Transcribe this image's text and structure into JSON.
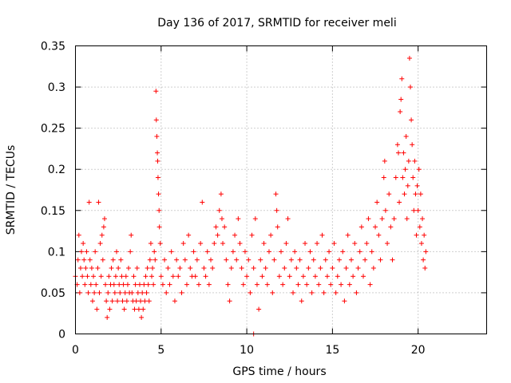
{
  "chart_data": {
    "type": "scatter",
    "title": "Day 136 of 2017, SRMTID for receiver meli",
    "xlabel": "GPS time / hours",
    "ylabel": "SRMTID / TECUs",
    "xlim": [
      0,
      24
    ],
    "ylim": [
      0,
      0.35
    ],
    "x_ticks": [
      0,
      5,
      10,
      15,
      20
    ],
    "y_ticks": [
      0,
      0.05,
      0.1,
      0.15,
      0.2,
      0.25,
      0.3,
      0.35
    ],
    "x_tick_labels": [
      "0",
      "5",
      "10",
      "15",
      "20"
    ],
    "y_tick_labels": [
      "0",
      "0.05",
      "0.1",
      "0.15",
      "0.2",
      "0.25",
      "0.3",
      "0.35"
    ],
    "grid": true,
    "marker": "+",
    "color": "#ff0000",
    "series": [
      {
        "values_xy": [
          [
            0.0,
            0.07
          ],
          [
            0.1,
            0.06
          ],
          [
            0.15,
            0.09
          ],
          [
            0.2,
            0.12
          ],
          [
            0.25,
            0.05
          ],
          [
            0.3,
            0.08
          ],
          [
            0.35,
            0.1
          ],
          [
            0.4,
            0.07
          ],
          [
            0.45,
            0.11
          ],
          [
            0.5,
            0.09
          ],
          [
            0.55,
            0.06
          ],
          [
            0.6,
            0.08
          ],
          [
            0.65,
            0.1
          ],
          [
            0.7,
            0.07
          ],
          [
            0.75,
            0.05
          ],
          [
            0.8,
            0.16
          ],
          [
            0.85,
            0.09
          ],
          [
            0.9,
            0.06
          ],
          [
            0.95,
            0.08
          ],
          [
            1.0,
            0.04
          ],
          [
            1.05,
            0.07
          ],
          [
            1.1,
            0.05
          ],
          [
            1.15,
            0.1
          ],
          [
            1.2,
            0.06
          ],
          [
            1.25,
            0.03
          ],
          [
            1.3,
            0.08
          ],
          [
            1.35,
            0.16
          ],
          [
            1.4,
            0.05
          ],
          [
            1.45,
            0.11
          ],
          [
            1.5,
            0.07
          ],
          [
            1.55,
            0.12
          ],
          [
            1.6,
            0.09
          ],
          [
            1.65,
            0.13
          ],
          [
            1.7,
            0.14
          ],
          [
            1.75,
            0.06
          ],
          [
            1.8,
            0.04
          ],
          [
            1.85,
            0.02
          ],
          [
            1.9,
            0.05
          ],
          [
            1.95,
            0.07
          ],
          [
            2.0,
            0.03
          ],
          [
            2.05,
            0.06
          ],
          [
            2.1,
            0.08
          ],
          [
            2.15,
            0.04
          ],
          [
            2.2,
            0.09
          ],
          [
            2.25,
            0.06
          ],
          [
            2.3,
            0.05
          ],
          [
            2.35,
            0.07
          ],
          [
            2.4,
            0.1
          ],
          [
            2.45,
            0.04
          ],
          [
            2.5,
            0.08
          ],
          [
            2.55,
            0.06
          ],
          [
            2.6,
            0.05
          ],
          [
            2.65,
            0.09
          ],
          [
            2.7,
            0.07
          ],
          [
            2.75,
            0.04
          ],
          [
            2.8,
            0.06
          ],
          [
            2.85,
            0.03
          ],
          [
            2.9,
            0.05
          ],
          [
            2.95,
            0.07
          ],
          [
            3.0,
            0.04
          ],
          [
            3.05,
            0.06
          ],
          [
            3.1,
            0.08
          ],
          [
            3.15,
            0.05
          ],
          [
            3.2,
            0.1
          ],
          [
            3.25,
            0.12
          ],
          [
            3.3,
            0.05
          ],
          [
            3.35,
            0.04
          ],
          [
            3.4,
            0.07
          ],
          [
            3.45,
            0.03
          ],
          [
            3.5,
            0.06
          ],
          [
            3.55,
            0.04
          ],
          [
            3.6,
            0.08
          ],
          [
            3.65,
            0.05
          ],
          [
            3.7,
            0.03
          ],
          [
            3.75,
            0.06
          ],
          [
            3.8,
            0.04
          ],
          [
            3.85,
            0.02
          ],
          [
            3.9,
            0.05
          ],
          [
            3.95,
            0.03
          ],
          [
            4.0,
            0.06
          ],
          [
            4.05,
            0.04
          ],
          [
            4.1,
            0.07
          ],
          [
            4.15,
            0.05
          ],
          [
            4.2,
            0.08
          ],
          [
            4.25,
            0.06
          ],
          [
            4.3,
            0.04
          ],
          [
            4.35,
            0.09
          ],
          [
            4.4,
            0.11
          ],
          [
            4.45,
            0.07
          ],
          [
            4.5,
            0.08
          ],
          [
            4.55,
            0.06
          ],
          [
            4.6,
            0.1
          ],
          [
            4.65,
            0.09
          ],
          [
            4.7,
            0.295
          ],
          [
            4.72,
            0.26
          ],
          [
            4.75,
            0.24
          ],
          [
            4.78,
            0.22
          ],
          [
            4.8,
            0.21
          ],
          [
            4.82,
            0.19
          ],
          [
            4.85,
            0.17
          ],
          [
            4.88,
            0.15
          ],
          [
            4.9,
            0.13
          ],
          [
            4.95,
            0.11
          ],
          [
            5.0,
            0.07
          ],
          [
            5.1,
            0.06
          ],
          [
            5.2,
            0.09
          ],
          [
            5.3,
            0.05
          ],
          [
            5.4,
            0.08
          ],
          [
            5.5,
            0.06
          ],
          [
            5.6,
            0.1
          ],
          [
            5.7,
            0.07
          ],
          [
            5.8,
            0.04
          ],
          [
            5.9,
            0.09
          ],
          [
            6.0,
            0.07
          ],
          [
            6.1,
            0.08
          ],
          [
            6.2,
            0.05
          ],
          [
            6.3,
            0.11
          ],
          [
            6.4,
            0.09
          ],
          [
            6.5,
            0.06
          ],
          [
            6.6,
            0.12
          ],
          [
            6.7,
            0.08
          ],
          [
            6.8,
            0.07
          ],
          [
            6.9,
            0.1
          ],
          [
            7.0,
            0.07
          ],
          [
            7.1,
            0.09
          ],
          [
            7.2,
            0.06
          ],
          [
            7.3,
            0.11
          ],
          [
            7.4,
            0.16
          ],
          [
            7.5,
            0.08
          ],
          [
            7.6,
            0.07
          ],
          [
            7.7,
            0.1
          ],
          [
            7.8,
            0.06
          ],
          [
            7.9,
            0.09
          ],
          [
            8.0,
            0.08
          ],
          [
            8.1,
            0.11
          ],
          [
            8.2,
            0.13
          ],
          [
            8.3,
            0.12
          ],
          [
            8.4,
            0.15
          ],
          [
            8.5,
            0.17
          ],
          [
            8.55,
            0.14
          ],
          [
            8.6,
            0.11
          ],
          [
            8.7,
            0.13
          ],
          [
            8.8,
            0.09
          ],
          [
            8.9,
            0.06
          ],
          [
            9.0,
            0.04
          ],
          [
            9.1,
            0.08
          ],
          [
            9.2,
            0.1
          ],
          [
            9.3,
            0.12
          ],
          [
            9.4,
            0.09
          ],
          [
            9.5,
            0.14
          ],
          [
            9.6,
            0.11
          ],
          [
            9.7,
            0.08
          ],
          [
            9.8,
            0.06
          ],
          [
            9.9,
            0.1
          ],
          [
            10.0,
            0.07
          ],
          [
            10.1,
            0.09
          ],
          [
            10.2,
            0.05
          ],
          [
            10.3,
            0.12
          ],
          [
            10.4,
            0.08
          ],
          [
            10.5,
            0.14
          ],
          [
            10.6,
            0.06
          ],
          [
            10.7,
            0.03
          ],
          [
            10.8,
            0.09
          ],
          [
            10.9,
            0.07
          ],
          [
            11.0,
            0.11
          ],
          [
            11.1,
            0.08
          ],
          [
            11.2,
            0.06
          ],
          [
            11.3,
            0.1
          ],
          [
            11.4,
            0.12
          ],
          [
            11.5,
            0.05
          ],
          [
            11.6,
            0.09
          ],
          [
            11.7,
            0.17
          ],
          [
            11.75,
            0.15
          ],
          [
            11.8,
            0.13
          ],
          [
            11.9,
            0.07
          ],
          [
            12.0,
            0.1
          ],
          [
            12.1,
            0.06
          ],
          [
            12.2,
            0.08
          ],
          [
            12.3,
            0.11
          ],
          [
            12.4,
            0.14
          ],
          [
            12.5,
            0.07
          ],
          [
            12.6,
            0.09
          ],
          [
            12.7,
            0.05
          ],
          [
            12.8,
            0.1
          ],
          [
            12.9,
            0.08
          ],
          [
            13.0,
            0.06
          ],
          [
            13.1,
            0.09
          ],
          [
            13.2,
            0.04
          ],
          [
            13.3,
            0.07
          ],
          [
            13.4,
            0.11
          ],
          [
            13.5,
            0.06
          ],
          [
            13.6,
            0.08
          ],
          [
            13.7,
            0.1
          ],
          [
            13.8,
            0.05
          ],
          [
            13.9,
            0.09
          ],
          [
            14.0,
            0.07
          ],
          [
            14.1,
            0.11
          ],
          [
            14.2,
            0.06
          ],
          [
            14.3,
            0.08
          ],
          [
            14.4,
            0.12
          ],
          [
            14.5,
            0.05
          ],
          [
            14.6,
            0.09
          ],
          [
            14.7,
            0.07
          ],
          [
            14.8,
            0.1
          ],
          [
            14.9,
            0.06
          ],
          [
            15.0,
            0.08
          ],
          [
            15.1,
            0.11
          ],
          [
            15.2,
            0.05
          ],
          [
            15.3,
            0.07
          ],
          [
            15.4,
            0.09
          ],
          [
            15.5,
            0.06
          ],
          [
            15.6,
            0.1
          ],
          [
            15.7,
            0.04
          ],
          [
            15.8,
            0.08
          ],
          [
            15.9,
            0.12
          ],
          [
            16.0,
            0.06
          ],
          [
            16.1,
            0.09
          ],
          [
            16.2,
            0.07
          ],
          [
            16.3,
            0.11
          ],
          [
            16.4,
            0.05
          ],
          [
            16.5,
            0.08
          ],
          [
            16.6,
            0.1
          ],
          [
            16.7,
            0.13
          ],
          [
            16.8,
            0.07
          ],
          [
            16.9,
            0.09
          ],
          [
            17.0,
            0.11
          ],
          [
            17.1,
            0.14
          ],
          [
            17.2,
            0.06
          ],
          [
            17.3,
            0.1
          ],
          [
            17.4,
            0.08
          ],
          [
            17.5,
            0.13
          ],
          [
            17.6,
            0.16
          ],
          [
            17.7,
            0.12
          ],
          [
            17.8,
            0.09
          ],
          [
            17.9,
            0.14
          ],
          [
            18.0,
            0.19
          ],
          [
            18.05,
            0.21
          ],
          [
            18.1,
            0.15
          ],
          [
            18.2,
            0.11
          ],
          [
            18.3,
            0.17
          ],
          [
            18.4,
            0.13
          ],
          [
            18.5,
            0.09
          ],
          [
            18.6,
            0.14
          ],
          [
            18.7,
            0.19
          ],
          [
            18.8,
            0.23
          ],
          [
            18.85,
            0.22
          ],
          [
            18.9,
            0.16
          ],
          [
            18.95,
            0.27
          ],
          [
            19.0,
            0.285
          ],
          [
            19.05,
            0.31
          ],
          [
            19.1,
            0.19
          ],
          [
            19.15,
            0.22
          ],
          [
            19.2,
            0.17
          ],
          [
            19.25,
            0.2
          ],
          [
            19.3,
            0.24
          ],
          [
            19.35,
            0.14
          ],
          [
            19.4,
            0.18
          ],
          [
            19.45,
            0.21
          ],
          [
            19.5,
            0.335
          ],
          [
            19.55,
            0.3
          ],
          [
            19.6,
            0.26
          ],
          [
            19.65,
            0.23
          ],
          [
            19.7,
            0.19
          ],
          [
            19.75,
            0.15
          ],
          [
            19.8,
            0.21
          ],
          [
            19.85,
            0.17
          ],
          [
            19.9,
            0.12
          ],
          [
            19.95,
            0.18
          ],
          [
            20.0,
            0.15
          ],
          [
            20.05,
            0.2
          ],
          [
            20.1,
            0.13
          ],
          [
            20.15,
            0.17
          ],
          [
            20.2,
            0.11
          ],
          [
            20.25,
            0.14
          ],
          [
            20.3,
            0.09
          ],
          [
            20.35,
            0.12
          ],
          [
            20.4,
            0.08
          ],
          [
            20.45,
            0.1
          ],
          [
            10.4,
            0.0
          ]
        ]
      }
    ]
  }
}
